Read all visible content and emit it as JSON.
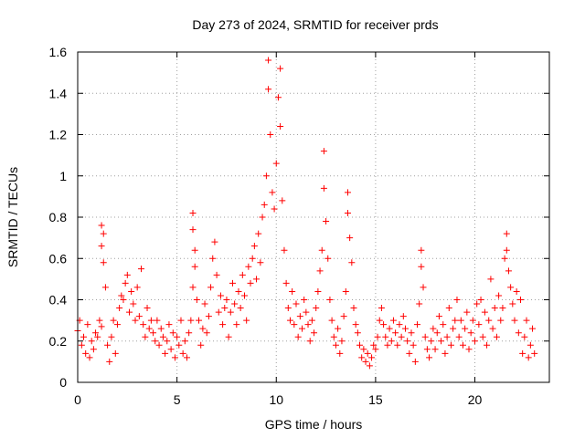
{
  "chart_data": {
    "type": "scatter",
    "title": "Day 273 of 2024, SRMTID for receiver prds",
    "xlabel": "GPS time / hours",
    "ylabel": "SRMTID / TECUs",
    "xlim": [
      0,
      23.75
    ],
    "ylim": [
      0,
      1.6
    ],
    "x_ticks": [
      0,
      5,
      10,
      15,
      20
    ],
    "x_tick_labels": [
      "0",
      "5",
      "10",
      "15",
      "20"
    ],
    "y_ticks": [
      0,
      0.2,
      0.4,
      0.6,
      0.8,
      1,
      1.2,
      1.4,
      1.6
    ],
    "y_tick_labels": [
      "0",
      "0.2",
      "0.4",
      "0.6",
      "0.8",
      "1",
      "1.2",
      "1.4",
      "1.6"
    ],
    "grid": true,
    "marker": "+",
    "series": [
      {
        "name": "SRMTID",
        "color": "#ff0000",
        "points": [
          [
            0.0,
            0.25
          ],
          [
            0.1,
            0.3
          ],
          [
            0.2,
            0.18
          ],
          [
            0.3,
            0.22
          ],
          [
            0.4,
            0.14
          ],
          [
            0.5,
            0.28
          ],
          [
            0.6,
            0.12
          ],
          [
            0.7,
            0.2
          ],
          [
            0.8,
            0.16
          ],
          [
            0.9,
            0.24
          ],
          [
            1.0,
            0.22
          ],
          [
            1.1,
            0.3
          ],
          [
            1.2,
            0.27
          ],
          [
            1.2,
            0.76
          ],
          [
            1.2,
            0.66
          ],
          [
            1.3,
            0.72
          ],
          [
            1.3,
            0.58
          ],
          [
            1.4,
            0.46
          ],
          [
            1.5,
            0.18
          ],
          [
            1.6,
            0.1
          ],
          [
            1.7,
            0.22
          ],
          [
            1.8,
            0.3
          ],
          [
            1.9,
            0.14
          ],
          [
            2.0,
            0.28
          ],
          [
            2.1,
            0.36
          ],
          [
            2.2,
            0.42
          ],
          [
            2.3,
            0.4
          ],
          [
            2.4,
            0.48
          ],
          [
            2.5,
            0.52
          ],
          [
            2.6,
            0.34
          ],
          [
            2.7,
            0.44
          ],
          [
            2.8,
            0.38
          ],
          [
            2.9,
            0.3
          ],
          [
            3.0,
            0.46
          ],
          [
            3.1,
            0.32
          ],
          [
            3.2,
            0.55
          ],
          [
            3.3,
            0.28
          ],
          [
            3.4,
            0.22
          ],
          [
            3.5,
            0.36
          ],
          [
            3.6,
            0.26
          ],
          [
            3.7,
            0.3
          ],
          [
            3.8,
            0.24
          ],
          [
            3.9,
            0.2
          ],
          [
            4.0,
            0.3
          ],
          [
            4.1,
            0.18
          ],
          [
            4.2,
            0.26
          ],
          [
            4.3,
            0.22
          ],
          [
            4.4,
            0.14
          ],
          [
            4.5,
            0.2
          ],
          [
            4.6,
            0.28
          ],
          [
            4.7,
            0.16
          ],
          [
            4.8,
            0.24
          ],
          [
            4.9,
            0.12
          ],
          [
            5.0,
            0.22
          ],
          [
            5.1,
            0.18
          ],
          [
            5.2,
            0.3
          ],
          [
            5.3,
            0.14
          ],
          [
            5.4,
            0.2
          ],
          [
            5.5,
            0.12
          ],
          [
            5.6,
            0.24
          ],
          [
            5.7,
            0.3
          ],
          [
            5.8,
            0.46
          ],
          [
            5.8,
            0.82
          ],
          [
            5.8,
            0.74
          ],
          [
            5.9,
            0.64
          ],
          [
            5.9,
            0.56
          ],
          [
            6.0,
            0.4
          ],
          [
            6.1,
            0.3
          ],
          [
            6.2,
            0.18
          ],
          [
            6.3,
            0.26
          ],
          [
            6.4,
            0.38
          ],
          [
            6.5,
            0.24
          ],
          [
            6.6,
            0.32
          ],
          [
            6.7,
            0.46
          ],
          [
            6.8,
            0.6
          ],
          [
            6.9,
            0.68
          ],
          [
            7.0,
            0.52
          ],
          [
            7.1,
            0.34
          ],
          [
            7.2,
            0.42
          ],
          [
            7.3,
            0.28
          ],
          [
            7.4,
            0.36
          ],
          [
            7.5,
            0.4
          ],
          [
            7.6,
            0.22
          ],
          [
            7.7,
            0.34
          ],
          [
            7.8,
            0.48
          ],
          [
            7.9,
            0.38
          ],
          [
            8.0,
            0.28
          ],
          [
            8.1,
            0.44
          ],
          [
            8.2,
            0.36
          ],
          [
            8.3,
            0.52
          ],
          [
            8.4,
            0.42
          ],
          [
            8.5,
            0.3
          ],
          [
            8.6,
            0.56
          ],
          [
            8.7,
            0.48
          ],
          [
            8.8,
            0.6
          ],
          [
            8.9,
            0.66
          ],
          [
            9.0,
            0.5
          ],
          [
            9.1,
            0.72
          ],
          [
            9.2,
            0.58
          ],
          [
            9.3,
            0.8
          ],
          [
            9.4,
            0.86
          ],
          [
            9.5,
            1.0
          ],
          [
            9.6,
            1.56
          ],
          [
            9.6,
            1.42
          ],
          [
            9.7,
            1.2
          ],
          [
            9.8,
            0.92
          ],
          [
            9.9,
            0.84
          ],
          [
            10.0,
            1.06
          ],
          [
            10.1,
            1.38
          ],
          [
            10.2,
            1.24
          ],
          [
            10.2,
            1.52
          ],
          [
            10.3,
            0.88
          ],
          [
            10.4,
            0.64
          ],
          [
            10.5,
            0.48
          ],
          [
            10.6,
            0.36
          ],
          [
            10.7,
            0.3
          ],
          [
            10.8,
            0.44
          ],
          [
            10.9,
            0.28
          ],
          [
            11.0,
            0.38
          ],
          [
            11.1,
            0.22
          ],
          [
            11.2,
            0.32
          ],
          [
            11.3,
            0.26
          ],
          [
            11.4,
            0.4
          ],
          [
            11.5,
            0.34
          ],
          [
            11.6,
            0.28
          ],
          [
            11.7,
            0.2
          ],
          [
            11.8,
            0.3
          ],
          [
            11.9,
            0.24
          ],
          [
            12.0,
            0.36
          ],
          [
            12.1,
            0.44
          ],
          [
            12.2,
            0.54
          ],
          [
            12.3,
            0.64
          ],
          [
            12.4,
            1.12
          ],
          [
            12.4,
            0.94
          ],
          [
            12.5,
            0.78
          ],
          [
            12.6,
            0.6
          ],
          [
            12.7,
            0.4
          ],
          [
            12.8,
            0.3
          ],
          [
            12.9,
            0.22
          ],
          [
            13.0,
            0.18
          ],
          [
            13.1,
            0.26
          ],
          [
            13.2,
            0.14
          ],
          [
            13.3,
            0.2
          ],
          [
            13.4,
            0.32
          ],
          [
            13.5,
            0.44
          ],
          [
            13.6,
            0.92
          ],
          [
            13.6,
            0.82
          ],
          [
            13.7,
            0.7
          ],
          [
            13.8,
            0.58
          ],
          [
            13.9,
            0.36
          ],
          [
            14.0,
            0.28
          ],
          [
            14.1,
            0.24
          ],
          [
            14.2,
            0.18
          ],
          [
            14.3,
            0.12
          ],
          [
            14.4,
            0.16
          ],
          [
            14.5,
            0.1
          ],
          [
            14.6,
            0.14
          ],
          [
            14.7,
            0.08
          ],
          [
            14.8,
            0.12
          ],
          [
            14.9,
            0.18
          ],
          [
            15.0,
            0.16
          ],
          [
            15.1,
            0.22
          ],
          [
            15.2,
            0.3
          ],
          [
            15.3,
            0.36
          ],
          [
            15.4,
            0.28
          ],
          [
            15.5,
            0.22
          ],
          [
            15.6,
            0.18
          ],
          [
            15.7,
            0.26
          ],
          [
            15.8,
            0.2
          ],
          [
            15.9,
            0.3
          ],
          [
            16.0,
            0.24
          ],
          [
            16.1,
            0.18
          ],
          [
            16.2,
            0.28
          ],
          [
            16.3,
            0.22
          ],
          [
            16.4,
            0.32
          ],
          [
            16.5,
            0.26
          ],
          [
            16.6,
            0.2
          ],
          [
            16.7,
            0.14
          ],
          [
            16.8,
            0.24
          ],
          [
            16.9,
            0.18
          ],
          [
            17.0,
            0.1
          ],
          [
            17.1,
            0.28
          ],
          [
            17.2,
            0.38
          ],
          [
            17.3,
            0.64
          ],
          [
            17.3,
            0.56
          ],
          [
            17.4,
            0.46
          ],
          [
            17.5,
            0.22
          ],
          [
            17.6,
            0.16
          ],
          [
            17.7,
            0.12
          ],
          [
            17.8,
            0.2
          ],
          [
            17.9,
            0.26
          ],
          [
            18.0,
            0.16
          ],
          [
            18.1,
            0.24
          ],
          [
            18.2,
            0.32
          ],
          [
            18.3,
            0.2
          ],
          [
            18.4,
            0.28
          ],
          [
            18.5,
            0.14
          ],
          [
            18.6,
            0.22
          ],
          [
            18.7,
            0.36
          ],
          [
            18.8,
            0.18
          ],
          [
            18.9,
            0.26
          ],
          [
            19.0,
            0.3
          ],
          [
            19.1,
            0.4
          ],
          [
            19.2,
            0.22
          ],
          [
            19.3,
            0.3
          ],
          [
            19.4,
            0.18
          ],
          [
            19.5,
            0.26
          ],
          [
            19.6,
            0.34
          ],
          [
            19.7,
            0.16
          ],
          [
            19.8,
            0.24
          ],
          [
            19.9,
            0.3
          ],
          [
            20.0,
            0.2
          ],
          [
            20.1,
            0.38
          ],
          [
            20.2,
            0.28
          ],
          [
            20.3,
            0.4
          ],
          [
            20.4,
            0.22
          ],
          [
            20.5,
            0.34
          ],
          [
            20.6,
            0.18
          ],
          [
            20.7,
            0.3
          ],
          [
            20.8,
            0.5
          ],
          [
            20.9,
            0.26
          ],
          [
            21.0,
            0.36
          ],
          [
            21.1,
            0.22
          ],
          [
            21.2,
            0.42
          ],
          [
            21.3,
            0.3
          ],
          [
            21.4,
            0.36
          ],
          [
            21.5,
            0.6
          ],
          [
            21.6,
            0.72
          ],
          [
            21.6,
            0.64
          ],
          [
            21.7,
            0.54
          ],
          [
            21.8,
            0.46
          ],
          [
            21.9,
            0.38
          ],
          [
            22.0,
            0.3
          ],
          [
            22.1,
            0.44
          ],
          [
            22.2,
            0.24
          ],
          [
            22.3,
            0.4
          ],
          [
            22.4,
            0.14
          ],
          [
            22.5,
            0.22
          ],
          [
            22.6,
            0.3
          ],
          [
            22.7,
            0.12
          ],
          [
            22.8,
            0.18
          ],
          [
            22.9,
            0.26
          ],
          [
            23.0,
            0.14
          ]
        ]
      }
    ]
  }
}
